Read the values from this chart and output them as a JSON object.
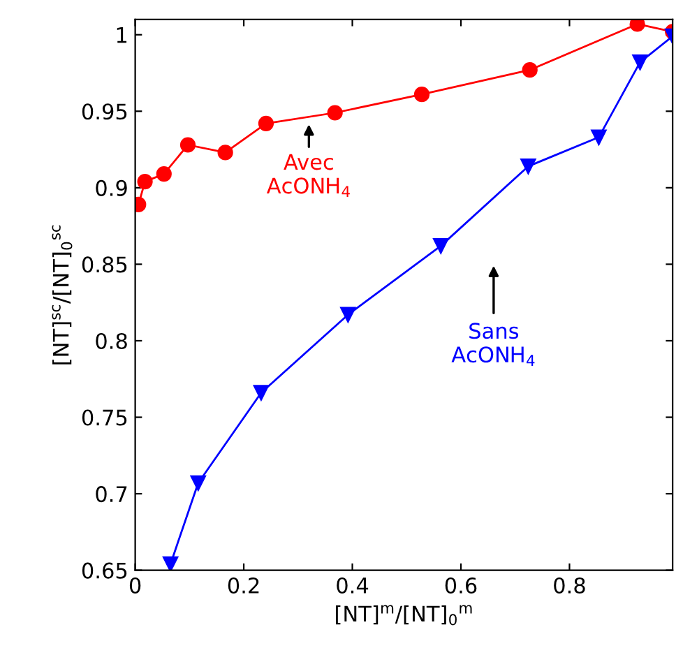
{
  "chart_data": {
    "type": "line",
    "xlabel": "[NT]$^{m}$/[NT]$_{0}$$^{m}$",
    "ylabel": "[NT]$^{sc}$/[NT]$_{0}$$^{sc}$",
    "xlim": [
      0,
      0.99
    ],
    "ylim": [
      0.65,
      1.01
    ],
    "xticks": [
      0,
      0.2,
      0.4,
      0.6,
      0.8
    ],
    "yticks": [
      0.65,
      0.7,
      0.75,
      0.8,
      0.85,
      0.9,
      0.95,
      1
    ],
    "grid": false,
    "legend": false,
    "line_style": "solid",
    "series": [
      {
        "color": "#ff0000",
        "marker": "circle",
        "x": [
          0.006,
          0.018,
          0.053,
          0.097,
          0.166,
          0.241,
          0.368,
          0.528,
          0.727,
          0.925,
          0.99
        ],
        "values": [
          0.889,
          0.904,
          0.909,
          0.928,
          0.923,
          0.942,
          0.949,
          0.961,
          0.977,
          1.007,
          1.002
        ]
      },
      {
        "color": "#0000ff",
        "marker": "triangle",
        "x": [
          0.065,
          0.116,
          0.232,
          0.392,
          0.563,
          0.724,
          0.854,
          0.93,
          0.99
        ],
        "values": [
          0.654,
          0.707,
          0.766,
          0.817,
          0.862,
          0.914,
          0.933,
          0.982,
          0.999
        ]
      }
    ],
    "annotations": [
      {
        "text": "Avec\nAcONH$_{4}$",
        "x": 0.32,
        "y": 0.944
      },
      "Sans\nAcONH$_{4}$"
    ]
  }
}
